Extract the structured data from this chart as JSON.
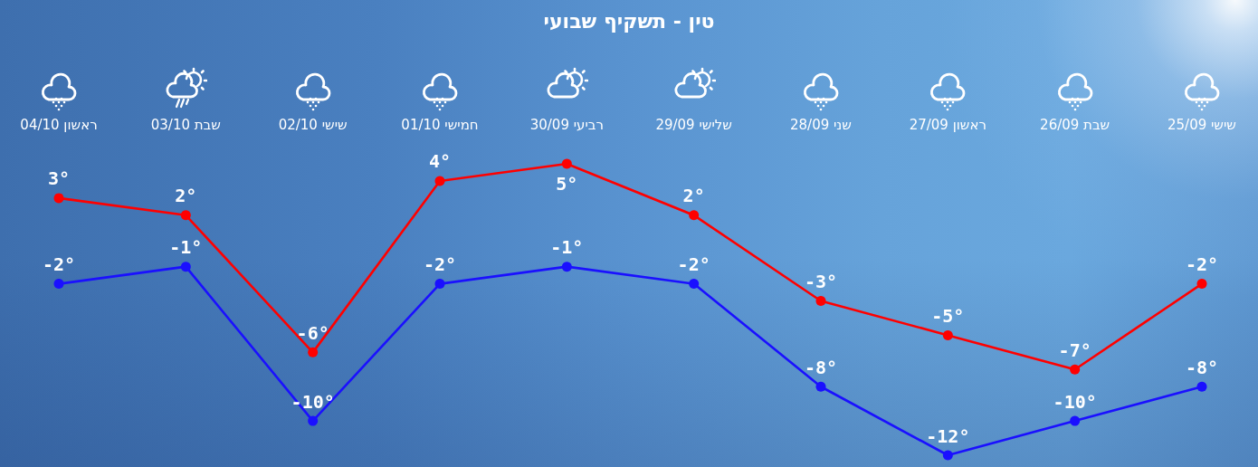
{
  "chart_data": {
    "type": "line",
    "title": "טין - תשקיף שבועי",
    "categories": [
      "ראשון 04/10",
      "שבת 03/10",
      "שישי 02/10",
      "חמישי 01/10",
      "רביעי 30/09",
      "שלישי 29/09",
      "שני 28/09",
      "ראשון 27/09",
      "שבת 26/09",
      "שישי 25/09"
    ],
    "series": [
      {
        "color": "#ff0000",
        "values": [
          3,
          2,
          -6,
          4,
          5,
          2,
          -3,
          -5,
          -7,
          -2
        ],
        "value_labels": [
          "3°",
          "2°",
          "-6°",
          "4°",
          "5°",
          "2°",
          "-3°",
          "-5°",
          "-7°",
          "-2°"
        ]
      },
      {
        "color": "#1a10ff",
        "values": [
          -2,
          -1,
          -10,
          -2,
          -1,
          -2,
          -8,
          -12,
          -10,
          -8
        ],
        "value_labels": [
          "-2°",
          "-1°",
          "-10°",
          "-2°",
          "-1°",
          "-2°",
          "-8°",
          "-12°",
          "-10°",
          "-8°"
        ]
      }
    ],
    "marker": "circle",
    "line_style": "solid",
    "grid": false,
    "tick_labels": "x"
  }
}
